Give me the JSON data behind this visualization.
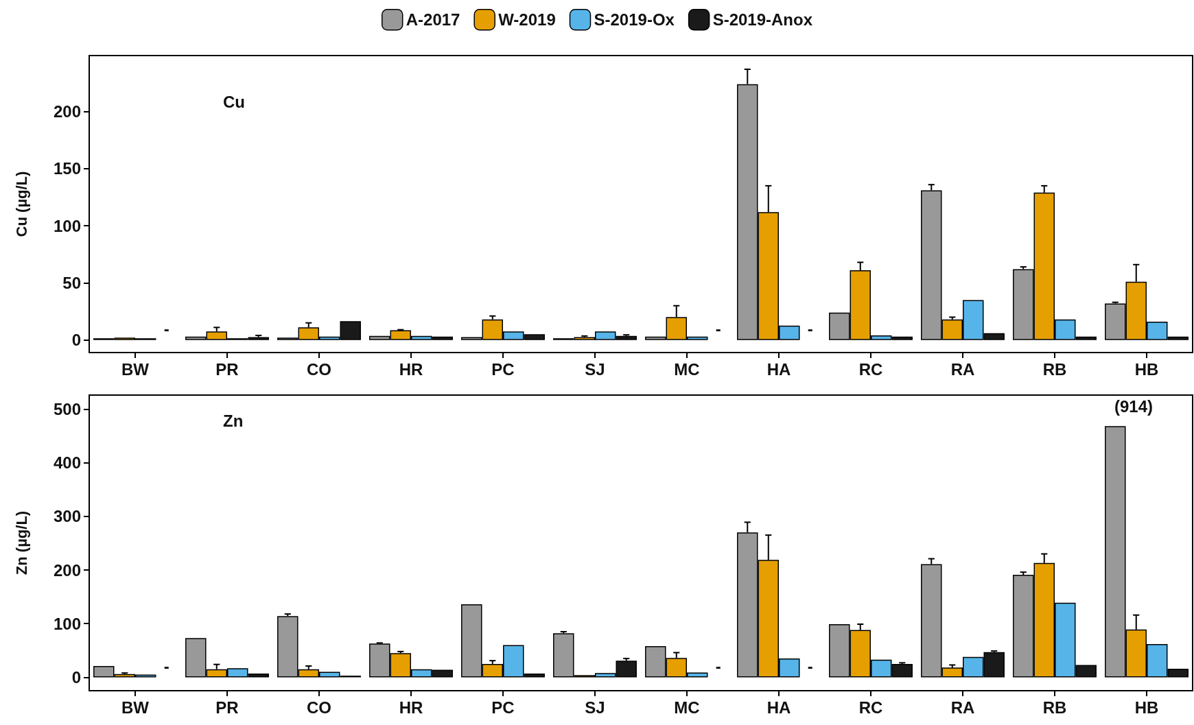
{
  "chart_data": [
    {
      "type": "bar",
      "title": "Cu",
      "ylabel": "Cu (µg/L)",
      "categories": [
        "BW",
        "PR",
        "CO",
        "HR",
        "PC",
        "SJ",
        "MC",
        "HA",
        "RC",
        "RA",
        "RB",
        "HB"
      ],
      "ylim": [
        -11,
        249
      ],
      "yticks": [
        0,
        50,
        100,
        150,
        200
      ],
      "grid": false,
      "legend": "top",
      "series": [
        {
          "name": "A-2017",
          "color": "#999999",
          "values": [
            1.5,
            3,
            2,
            3.5,
            2.5,
            1.5,
            3,
            224,
            24,
            131,
            62,
            32
          ],
          "errors": [
            null,
            null,
            null,
            null,
            null,
            null,
            null,
            [
              224,
              237
            ],
            null,
            [
              131,
              136
            ],
            [
              62,
              64
            ],
            [
              32,
              33
            ]
          ]
        },
        {
          "name": "W-2019",
          "color": "#e69f00",
          "values": [
            2,
            7.5,
            11,
            8.5,
            18,
            2.5,
            20,
            112,
            61,
            18,
            129,
            51
          ],
          "errors": [
            null,
            [
              7.5,
              11
            ],
            [
              11,
              15
            ],
            [
              8.5,
              9
            ],
            [
              18,
              21
            ],
            [
              2.5,
              3.5
            ],
            [
              20,
              30
            ],
            [
              112,
              135
            ],
            [
              61,
              68
            ],
            [
              18,
              20
            ],
            [
              129,
              135
            ],
            [
              51,
              66
            ]
          ]
        },
        {
          "name": "S-2019-Ox",
          "color": "#56b4e9",
          "values": [
            1.5,
            1.5,
            3,
            3.5,
            7.5,
            7.5,
            3,
            12.5,
            4,
            35,
            18,
            16
          ]
        },
        {
          "name": "S-2019-Anox",
          "color": "#1a1a1a",
          "values": [
            null,
            2.5,
            16.5,
            3,
            5,
            3.5,
            null,
            null,
            3,
            6,
            3,
            3
          ],
          "errors": [
            null,
            [
              2.5,
              4
            ],
            null,
            null,
            null,
            [
              3.5,
              4.5
            ],
            null,
            null,
            null,
            null,
            null,
            null
          ]
        }
      ],
      "annotations": [
        {
          "text": "-",
          "x": "BW",
          "y": 0
        },
        {
          "text": "-",
          "x": "MC",
          "y": 0
        },
        {
          "text": "-",
          "x": "HA",
          "y": 0
        }
      ]
    },
    {
      "type": "bar",
      "title": "Zn",
      "ylabel": "Zn (µg/L)",
      "categories": [
        "BW",
        "PR",
        "CO",
        "HR",
        "PC",
        "SJ",
        "MC",
        "HA",
        "RC",
        "RA",
        "RB",
        "HB"
      ],
      "ylim": [
        -25,
        526
      ],
      "yticks": [
        0,
        100,
        200,
        300,
        400,
        500
      ],
      "grid": false,
      "series": [
        {
          "color": "#999999",
          "values": [
            21,
            73,
            114,
            63,
            136,
            82,
            58,
            270,
            99,
            211,
            191,
            468
          ],
          "errors": [
            null,
            null,
            [
              114,
              118
            ],
            [
              63,
              64
            ],
            null,
            [
              82,
              85
            ],
            null,
            [
              270,
              289
            ],
            null,
            [
              211,
              221
            ],
            [
              191,
              196
            ],
            null
          ]
        },
        {
          "color": "#e69f00",
          "values": [
            6,
            15,
            15,
            45,
            25,
            4,
            36,
            219,
            88,
            18,
            213,
            89
          ],
          "errors": [
            [
              6,
              8
            ],
            [
              15,
              24
            ],
            [
              15,
              21
            ],
            [
              45,
              48
            ],
            [
              25,
              31
            ],
            null,
            [
              36,
              46
            ],
            [
              219,
              265
            ],
            [
              88,
              99
            ],
            [
              18,
              23
            ],
            [
              213,
              230
            ],
            [
              89,
              116
            ]
          ]
        },
        {
          "color": "#56b4e9",
          "values": [
            5,
            17,
            10,
            15,
            60,
            8,
            9,
            35,
            33,
            38,
            139,
            62
          ]
        },
        {
          "color": "#1a1a1a",
          "values": [
            null,
            7,
            3,
            14,
            7,
            31,
            null,
            null,
            25,
            47,
            23,
            16
          ],
          "errors": [
            null,
            null,
            null,
            null,
            null,
            [
              31,
              35
            ],
            null,
            null,
            [
              25,
              27
            ],
            [
              47,
              49
            ],
            null,
            null
          ]
        }
      ],
      "annotations": [
        {
          "text": "-",
          "x": "BW",
          "y": 0
        },
        {
          "text": "-",
          "x": "MC",
          "y": 0
        },
        {
          "text": "-",
          "x": "HA",
          "y": 0
        },
        "(914)"
      ]
    }
  ]
}
